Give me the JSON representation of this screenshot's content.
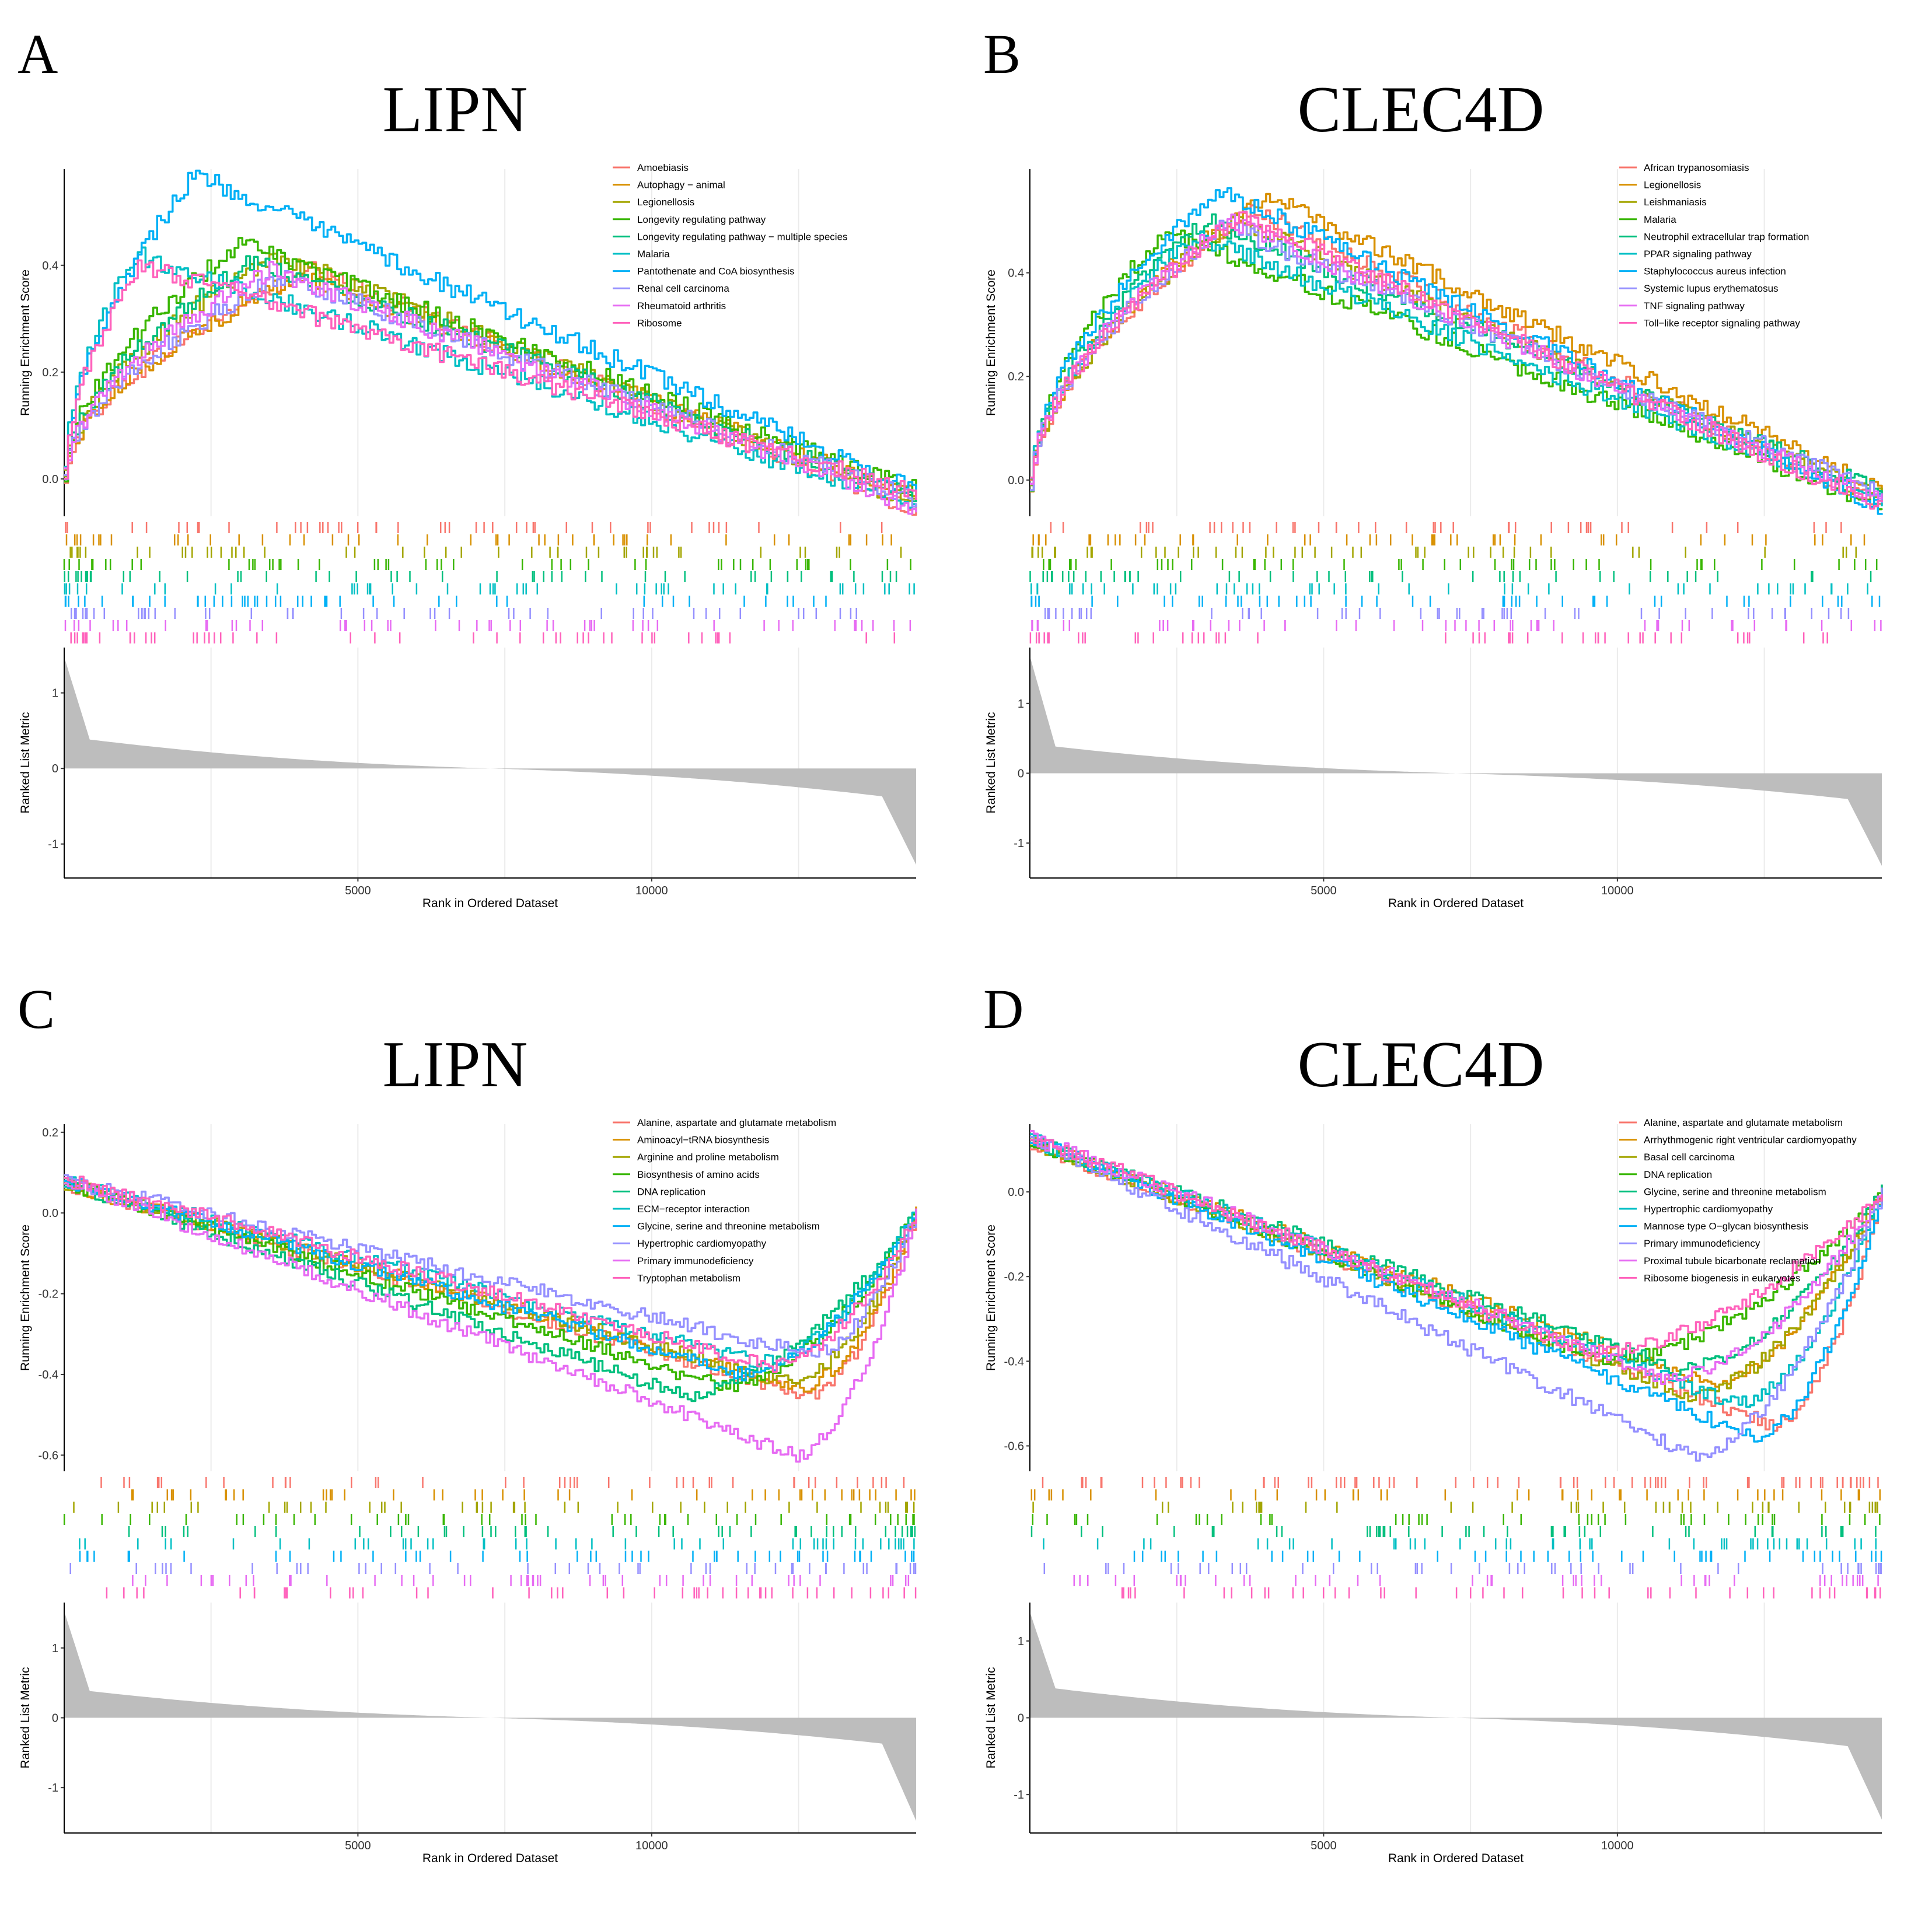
{
  "colors": [
    "#F8766D",
    "#D89000",
    "#A3A500",
    "#39B600",
    "#00BF7D",
    "#00BFC4",
    "#00B0F6",
    "#9590FF",
    "#E76BF3",
    "#FF62BC"
  ],
  "axes": {
    "es_label": "Running Enrichment Score",
    "metric_label": "Ranked List Metric",
    "rank_label": "Rank in Ordered Dataset",
    "rank_ticks": [
      "5000",
      "10000"
    ]
  },
  "chart_data": [
    {
      "panel": "A",
      "title": "LIPN",
      "type": "line",
      "x_range": [
        1,
        14500
      ],
      "es_range": [
        -0.07,
        0.58
      ],
      "es_ticks": [
        "0.0",
        "0.2",
        "0.4"
      ],
      "metric_range": [
        -1.45,
        1.6
      ],
      "metric_ticks": [
        "1",
        "0",
        "-1"
      ],
      "direction": "positive",
      "series": [
        {
          "name": "Amoebiasis",
          "peak_x": 4200,
          "peak_es": 0.39
        },
        {
          "name": "Autophagy − animal",
          "peak_x": 4000,
          "peak_es": 0.38
        },
        {
          "name": "Legionellosis",
          "peak_x": 3600,
          "peak_es": 0.42
        },
        {
          "name": "Longevity regulating pathway",
          "peak_x": 3000,
          "peak_es": 0.44
        },
        {
          "name": "Longevity regulating pathway − multiple species",
          "peak_x": 3200,
          "peak_es": 0.41
        },
        {
          "name": "Malaria",
          "peak_x": 1200,
          "peak_es": 0.42
        },
        {
          "name": "Pantothenate and CoA biosynthesis",
          "peak_x": 2200,
          "peak_es": 0.57
        },
        {
          "name": "Renal cell carcinoma",
          "peak_x": 3700,
          "peak_es": 0.38
        },
        {
          "name": "Rheumatoid arthritis",
          "peak_x": 3500,
          "peak_es": 0.39
        },
        {
          "name": "Ribosome",
          "peak_x": 1300,
          "peak_es": 0.4
        }
      ]
    },
    {
      "panel": "B",
      "title": "CLEC4D",
      "type": "line",
      "x_range": [
        1,
        14500
      ],
      "es_range": [
        -0.07,
        0.6
      ],
      "es_ticks": [
        "0.0",
        "0.2",
        "0.4"
      ],
      "metric_range": [
        -1.5,
        1.8
      ],
      "metric_ticks": [
        "1",
        "0",
        "-1"
      ],
      "direction": "positive",
      "series": [
        {
          "name": "African trypanosomiasis",
          "peak_x": 3800,
          "peak_es": 0.52
        },
        {
          "name": "Legionellosis",
          "peak_x": 4000,
          "peak_es": 0.55
        },
        {
          "name": "Leishmaniasis",
          "peak_x": 3500,
          "peak_es": 0.5
        },
        {
          "name": "Malaria",
          "peak_x": 2300,
          "peak_es": 0.48
        },
        {
          "name": "Neutrophil extracellular trap formation",
          "peak_x": 3000,
          "peak_es": 0.5
        },
        {
          "name": "PPAR signaling pathway",
          "peak_x": 2800,
          "peak_es": 0.47
        },
        {
          "name": "Staphylococcus aureus infection",
          "peak_x": 3200,
          "peak_es": 0.56
        },
        {
          "name": "Systemic lupus erythematosus",
          "peak_x": 3300,
          "peak_es": 0.49
        },
        {
          "name": "TNF signaling pathway",
          "peak_x": 3400,
          "peak_es": 0.5
        },
        {
          "name": "Toll−like receptor signaling pathway",
          "peak_x": 3600,
          "peak_es": 0.51
        }
      ]
    },
    {
      "panel": "C",
      "title": "LIPN",
      "type": "line",
      "x_range": [
        1,
        14500
      ],
      "es_range": [
        -0.64,
        0.22
      ],
      "es_ticks": [
        "0.2",
        "0.0",
        "-0.2",
        "-0.4",
        "-0.6"
      ],
      "metric_range": [
        -1.65,
        1.65
      ],
      "metric_ticks": [
        "1",
        "0",
        "-1"
      ],
      "direction": "negative",
      "series": [
        {
          "name": "Alanine, aspartate and glutamate metabolism",
          "peak_x": 12600,
          "peak_es": -0.45
        },
        {
          "name": "Aminoacyl−tRNA biosynthesis",
          "peak_x": 12500,
          "peak_es": -0.43
        },
        {
          "name": "Arginine and proline metabolism",
          "peak_x": 12300,
          "peak_es": -0.42
        },
        {
          "name": "Biosynthesis of amino acids",
          "peak_x": 11200,
          "peak_es": -0.43
        },
        {
          "name": "DNA replication",
          "peak_x": 10500,
          "peak_es": -0.45
        },
        {
          "name": "ECM−receptor interaction",
          "peak_x": 11800,
          "peak_es": -0.37
        },
        {
          "name": "Glycine, serine and threonine metabolism",
          "peak_x": 11500,
          "peak_es": -0.4
        },
        {
          "name": "Hypertrophic cardiomyopathy",
          "peak_x": 12700,
          "peak_es": -0.35
        },
        {
          "name": "Primary immunodeficiency",
          "peak_x": 12400,
          "peak_es": -0.6
        },
        {
          "name": "Tryptophan metabolism",
          "peak_x": 12000,
          "peak_es": -0.38
        }
      ]
    },
    {
      "panel": "D",
      "title": "CLEC4D",
      "type": "line",
      "x_range": [
        1,
        14500
      ],
      "es_range": [
        -0.66,
        0.16
      ],
      "es_ticks": [
        "0.0",
        "-0.2",
        "-0.4",
        "-0.6"
      ],
      "metric_range": [
        -1.5,
        1.5
      ],
      "metric_ticks": [
        "1",
        "0",
        "-1"
      ],
      "direction": "negative",
      "series": [
        {
          "name": "Alanine, aspartate and glutamate metabolism",
          "peak_x": 12600,
          "peak_es": -0.55
        },
        {
          "name": "Arrhythmogenic right ventricular cardiomyopathy",
          "peak_x": 11500,
          "peak_es": -0.45
        },
        {
          "name": "Basal cell carcinoma",
          "peak_x": 11200,
          "peak_es": -0.48
        },
        {
          "name": "DNA replication",
          "peak_x": 9700,
          "peak_es": -0.4
        },
        {
          "name": "Glycine, serine and threonine metabolism",
          "peak_x": 11000,
          "peak_es": -0.42
        },
        {
          "name": "Hypertrophic cardiomyopathy",
          "peak_x": 12000,
          "peak_es": -0.5
        },
        {
          "name": "Mannose type O−glycan biosynthesis",
          "peak_x": 12300,
          "peak_es": -0.58
        },
        {
          "name": "Primary immunodeficiency",
          "peak_x": 11200,
          "peak_es": -0.62
        },
        {
          "name": "Proximal tubule bicarbonate reclamation",
          "peak_x": 10800,
          "peak_es": -0.44
        },
        {
          "name": "Ribosome biogenesis in eukaryotes",
          "peak_x": 9500,
          "peak_es": -0.38
        }
      ]
    }
  ]
}
